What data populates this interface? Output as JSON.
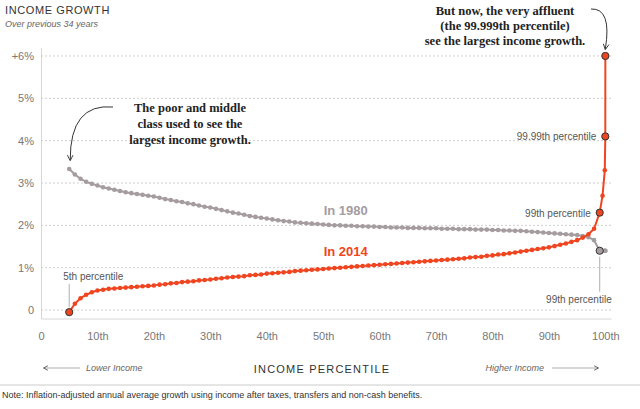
{
  "chart_data": {
    "type": "line",
    "title": "INCOME GROWTH",
    "subtitle": "Over previous 34 years",
    "x_label": "INCOME PERCENTILE",
    "x_label_left": "Lower Income",
    "x_label_right": "Higher Income",
    "note": "Note: Inflation-adjusted annual average growth using income after taxes, transfers and non-cash benefits.",
    "x": [
      5,
      6,
      7,
      8,
      9,
      10,
      11,
      12,
      13,
      14,
      15,
      16,
      17,
      18,
      19,
      20,
      21,
      22,
      23,
      24,
      25,
      26,
      27,
      28,
      29,
      30,
      31,
      32,
      33,
      34,
      35,
      36,
      37,
      38,
      39,
      40,
      41,
      42,
      43,
      44,
      45,
      46,
      47,
      48,
      49,
      50,
      51,
      52,
      53,
      54,
      55,
      56,
      57,
      58,
      59,
      60,
      61,
      62,
      63,
      64,
      65,
      66,
      67,
      68,
      69,
      70,
      71,
      72,
      73,
      74,
      75,
      76,
      77,
      78,
      79,
      80,
      81,
      82,
      83,
      84,
      85,
      86,
      87,
      88,
      89,
      90,
      91,
      92,
      93,
      94,
      95,
      96,
      97,
      98,
      99,
      99.5,
      99.9,
      99.99,
      99.999
    ],
    "series": [
      {
        "name": "In 1980",
        "color": "#a59c9f",
        "marker": "circle",
        "values": [
          3.33,
          3.2,
          3.1,
          3.03,
          2.98,
          2.94,
          2.9,
          2.87,
          2.84,
          2.81,
          2.78,
          2.76,
          2.74,
          2.72,
          2.7,
          2.68,
          2.65,
          2.62,
          2.6,
          2.57,
          2.55,
          2.52,
          2.5,
          2.47,
          2.44,
          2.42,
          2.39,
          2.36,
          2.33,
          2.3,
          2.28,
          2.25,
          2.22,
          2.2,
          2.18,
          2.16,
          2.14,
          2.12,
          2.1,
          2.09,
          2.07,
          2.06,
          2.05,
          2.04,
          2.03,
          2.02,
          2.01,
          2.0,
          2.0,
          1.99,
          1.99,
          1.98,
          1.98,
          1.97,
          1.97,
          1.96,
          1.96,
          1.95,
          1.95,
          1.95,
          1.94,
          1.94,
          1.94,
          1.93,
          1.93,
          1.93,
          1.92,
          1.92,
          1.92,
          1.91,
          1.91,
          1.91,
          1.9,
          1.9,
          1.9,
          1.89,
          1.89,
          1.88,
          1.88,
          1.87,
          1.87,
          1.86,
          1.85,
          1.84,
          1.83,
          1.82,
          1.81,
          1.8,
          1.79,
          1.78,
          1.77,
          1.75,
          1.72,
          1.65,
          1.4,
          1.4,
          1.4,
          1.4,
          1.4
        ]
      },
      {
        "name": "In 2014",
        "color": "#ef4520",
        "marker": "circle",
        "values": [
          -0.05,
          0.15,
          0.28,
          0.36,
          0.42,
          0.46,
          0.48,
          0.5,
          0.51,
          0.52,
          0.53,
          0.54,
          0.55,
          0.56,
          0.57,
          0.58,
          0.6,
          0.61,
          0.63,
          0.64,
          0.66,
          0.67,
          0.68,
          0.7,
          0.71,
          0.72,
          0.74,
          0.75,
          0.77,
          0.78,
          0.79,
          0.8,
          0.82,
          0.83,
          0.84,
          0.86,
          0.87,
          0.88,
          0.89,
          0.9,
          0.92,
          0.93,
          0.94,
          0.95,
          0.96,
          0.97,
          0.98,
          0.99,
          1.0,
          1.01,
          1.02,
          1.03,
          1.04,
          1.05,
          1.06,
          1.07,
          1.08,
          1.09,
          1.1,
          1.11,
          1.12,
          1.13,
          1.14,
          1.15,
          1.16,
          1.17,
          1.18,
          1.19,
          1.2,
          1.21,
          1.22,
          1.24,
          1.25,
          1.26,
          1.28,
          1.29,
          1.31,
          1.32,
          1.34,
          1.36,
          1.38,
          1.4,
          1.42,
          1.44,
          1.46,
          1.48,
          1.51,
          1.54,
          1.57,
          1.61,
          1.65,
          1.71,
          1.79,
          1.92,
          2.3,
          2.7,
          3.3,
          4.1,
          6.0
        ]
      }
    ],
    "xlim": [
      0,
      101
    ],
    "xticks": [
      0,
      {
        "value": 10,
        "label": "10th"
      },
      {
        "value": 20,
        "label": "20th"
      },
      {
        "value": 30,
        "label": "30th"
      },
      {
        "value": 40,
        "label": "40th"
      },
      {
        "value": 50,
        "label": "50th"
      },
      {
        "value": 60,
        "label": "60th"
      },
      {
        "value": 70,
        "label": "70th"
      },
      {
        "value": 80,
        "label": "80th"
      },
      {
        "value": 90,
        "label": "90th"
      },
      {
        "value": 100,
        "label": "100th"
      }
    ],
    "ylim": [
      -0.2,
      6.2
    ],
    "yticks": [
      0,
      {
        "value": 1,
        "label": "1%"
      },
      {
        "value": 2,
        "label": "2%"
      },
      {
        "value": 3,
        "label": "3%"
      },
      {
        "value": 4,
        "label": "4%"
      },
      {
        "value": 5,
        "label": "5%"
      },
      {
        "value": 6,
        "label": "+6%"
      }
    ],
    "grid": true,
    "annotations": [
      {
        "lines": [
          "The poor and middle",
          "class used to see the",
          "largest income growth."
        ],
        "x": 5,
        "y": 3.33
      },
      {
        "text": "5th percentile",
        "x": 5,
        "y": -0.05
      },
      {
        "text": "99th percentile",
        "x": 99,
        "y": 1.4
      },
      {
        "text": "99th percentile",
        "x": 99,
        "y": 2.3
      },
      {
        "text": "99.99th percentile",
        "x": 99.99,
        "y": 4.1
      },
      {
        "lines": [
          "But now, the very affluent",
          "(the 99.999th percentile)",
          "see the largest income growth."
        ],
        "x": 99.999,
        "y": 6.0
      }
    ]
  }
}
